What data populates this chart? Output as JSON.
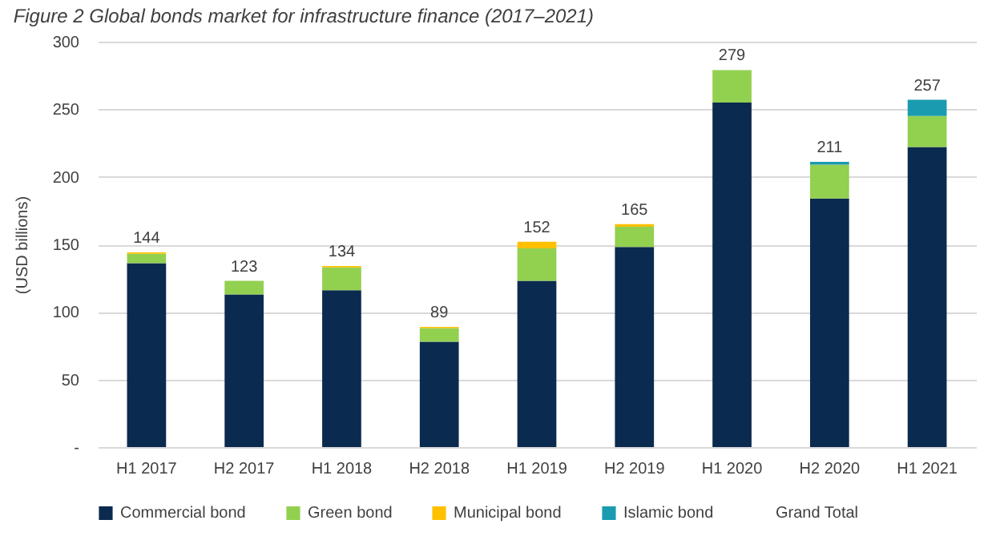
{
  "chart_data": {
    "type": "bar",
    "title": "Figure 2 Global bonds market for infrastructure finance (2017–2021)",
    "ylabel": "(USD billions)",
    "categories": [
      "H1 2017",
      "H2 2017",
      "H1 2018",
      "H2 2018",
      "H1 2019",
      "H2 2019",
      "H1 2020",
      "H2 2020",
      "H1 2021"
    ],
    "stacked": true,
    "series": [
      {
        "name": "Commercial bond",
        "color": "#0b2a4f",
        "values": [
          136,
          113,
          116,
          78,
          123,
          148,
          255,
          184,
          222
        ]
      },
      {
        "name": "Green bond",
        "color": "#92d050",
        "values": [
          7,
          10,
          17,
          10,
          24,
          15,
          24,
          25,
          23
        ]
      },
      {
        "name": "Municipal bond",
        "color": "#ffc000",
        "values": [
          1,
          0,
          1,
          1,
          5,
          2,
          0,
          0,
          0
        ]
      },
      {
        "name": "Islamic bond",
        "color": "#1b9bb0",
        "values": [
          0,
          0,
          0,
          0,
          0,
          0,
          0,
          2,
          12
        ]
      },
      {
        "name": "Grand Total",
        "values": [
          null,
          null,
          null,
          null,
          null,
          null,
          null,
          null,
          null
        ]
      }
    ],
    "totals": [
      "144",
      "123",
      "134",
      "89",
      "152",
      "165",
      "279",
      "211",
      "257"
    ],
    "ylim": [
      0,
      300
    ],
    "yticks": [
      {
        "value": 0,
        "label": "-"
      },
      50,
      100,
      150,
      200,
      250,
      300
    ],
    "grid": "y",
    "legend": "bottom"
  }
}
